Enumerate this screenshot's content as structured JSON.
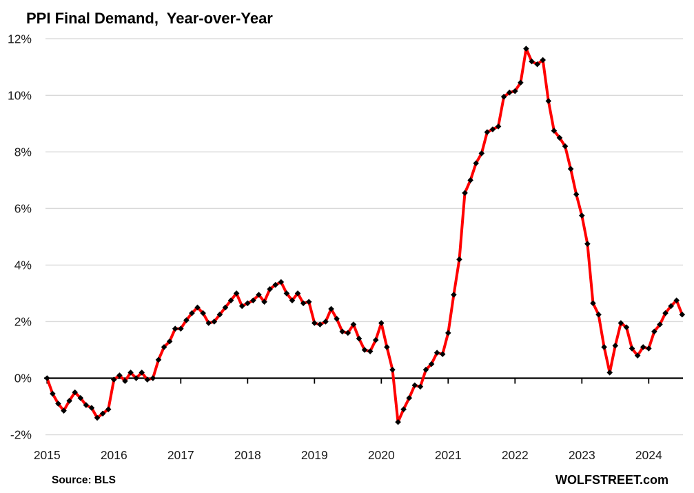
{
  "chart_data": {
    "type": "line",
    "title": "PPI Final Demand,  Year-over-Year",
    "xlabel": "",
    "ylabel": "",
    "unit": "%",
    "x_start": "2015-01",
    "x_end": "2024-07",
    "frequency": "monthly",
    "ylim": [
      -2,
      12
    ],
    "y_ticks": [
      -2,
      0,
      2,
      4,
      6,
      8,
      10,
      12
    ],
    "y_tick_labels": [
      "-2%",
      "0%",
      "2%",
      "4%",
      "6%",
      "8%",
      "10%",
      "12%"
    ],
    "x_tick_labels": [
      "2015",
      "2016",
      "2017",
      "2018",
      "2019",
      "2020",
      "2021",
      "2022",
      "2023",
      "2024"
    ],
    "grid": "horizontal-on",
    "legend": "none",
    "series": [
      {
        "name": "PPI Final Demand, year-over-year change",
        "line_color": "#ff0000",
        "marker": "diamond",
        "marker_color": "#000000",
        "values": [
          0.0,
          -0.55,
          -0.9,
          -1.15,
          -0.8,
          -0.5,
          -0.7,
          -0.95,
          -1.05,
          -1.4,
          -1.25,
          -1.1,
          -0.05,
          0.1,
          -0.1,
          0.2,
          0.0,
          0.2,
          -0.05,
          0.0,
          0.65,
          1.1,
          1.3,
          1.75,
          1.75,
          2.05,
          2.3,
          2.5,
          2.3,
          1.95,
          2.0,
          2.25,
          2.5,
          2.75,
          3.0,
          2.55,
          2.65,
          2.75,
          2.95,
          2.7,
          3.15,
          3.3,
          3.4,
          3.0,
          2.75,
          3.0,
          2.65,
          2.7,
          1.95,
          1.9,
          2.0,
          2.45,
          2.1,
          1.65,
          1.6,
          1.9,
          1.4,
          1.0,
          0.95,
          1.35,
          1.95,
          1.1,
          0.3,
          -1.55,
          -1.1,
          -0.7,
          -0.25,
          -0.3,
          0.3,
          0.5,
          0.9,
          0.85,
          1.6,
          2.95,
          4.2,
          6.55,
          7.0,
          7.6,
          7.95,
          8.7,
          8.8,
          8.9,
          9.95,
          10.1,
          10.15,
          10.45,
          11.65,
          11.2,
          11.1,
          11.25,
          9.8,
          8.75,
          8.5,
          8.2,
          7.4,
          6.5,
          5.75,
          4.75,
          2.65,
          2.25,
          1.1,
          0.2,
          1.15,
          1.95,
          1.8,
          1.05,
          0.8,
          1.1,
          1.05,
          1.65,
          1.9,
          2.3,
          2.55,
          2.75,
          2.25
        ]
      }
    ],
    "source": "Source: BLS",
    "watermark": "WOLFSTREET.com",
    "colors": {
      "line": "#ff0000",
      "marker": "#000000",
      "gridline": "#d9d9d9",
      "zero_axis": "#000000",
      "tick_label": "#1a1a1a",
      "background": "#ffffff"
    }
  }
}
